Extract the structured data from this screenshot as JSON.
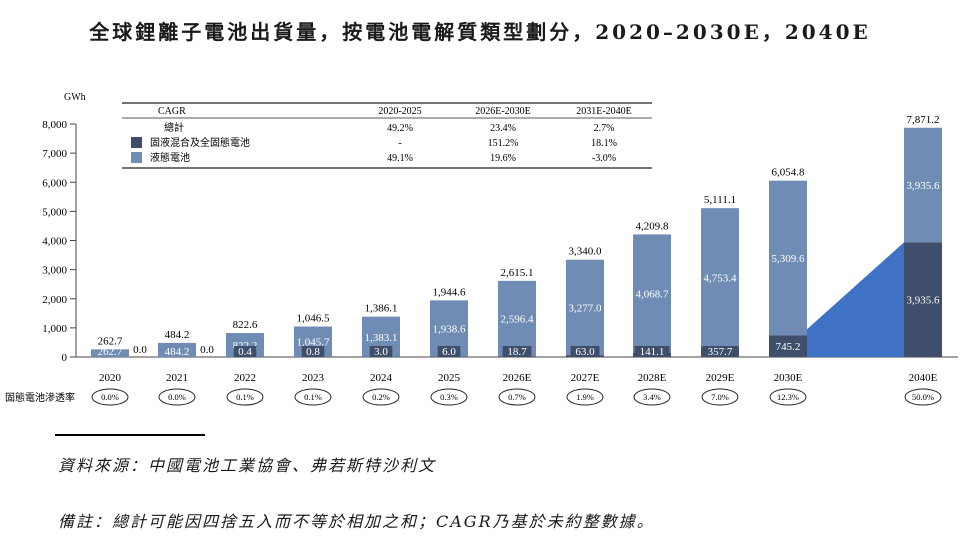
{
  "title": "全球鋰離子電池出貨量，按電池電解質類型劃分，2020–2030E，2040E",
  "source": "資料來源：中國電池工業協會、弗若斯特沙利文",
  "note": "備註：總計可能因四捨五入而不等於相加之和；CAGR乃基於未約整數據。",
  "colors": {
    "solid": "#3f4e6b",
    "liquid": "#6f8cb5",
    "wedge": "#3f72c4"
  },
  "chart_data": {
    "type": "bar",
    "stacked": true,
    "ylabel": "GWh",
    "ylim": [
      0,
      8000
    ],
    "yticks": [
      0,
      1000,
      2000,
      3000,
      4000,
      5000,
      6000,
      7000,
      8000
    ],
    "ytick_labels": [
      "0",
      "1,000",
      "2,000",
      "3,000",
      "4,000",
      "5,000",
      "6,000",
      "7,000",
      "8,000"
    ],
    "categories": [
      "2020",
      "2021",
      "2022",
      "2023",
      "2024",
      "2025",
      "2026E",
      "2027E",
      "2028E",
      "2029E",
      "2030E",
      "2040E"
    ],
    "series": [
      {
        "name": "固液混合及全固態電池",
        "values": [
          0,
          0,
          0.4,
          0.8,
          3.0,
          6.0,
          18.7,
          63.0,
          141.1,
          357.7,
          745.2,
          3935.6
        ],
        "labels": [
          "0.0",
          "0.0",
          "0.4",
          "0.8",
          "3.0",
          "6.0",
          "18.7",
          "63.0",
          "141.1",
          "357.7",
          "745.2",
          "3,935.6"
        ]
      },
      {
        "name": "液態電池",
        "values": [
          262.7,
          484.2,
          822.2,
          1045.7,
          1383.1,
          1938.6,
          2596.4,
          3277.0,
          4068.7,
          4753.4,
          5309.6,
          3935.6
        ],
        "labels": [
          "262.7",
          "484.2",
          "822.2",
          "1,045.7",
          "1,383.1",
          "1,938.6",
          "2,596.4",
          "3,277.0",
          "4,068.7",
          "4,753.4",
          "5,309.6",
          "3,935.6"
        ]
      }
    ],
    "totals": [
      262.7,
      484.2,
      822.6,
      1046.5,
      1386.1,
      1944.6,
      2615.1,
      3340.0,
      4209.8,
      5111.1,
      6054.8,
      7871.2
    ],
    "total_labels": [
      "262.7",
      "484.2",
      "822.6",
      "1,046.5",
      "1,386.1",
      "1,944.6",
      "2,615.1",
      "3,340.0",
      "4,209.8",
      "5,111.1",
      "6,054.8",
      "7,871.2"
    ],
    "penetration_label": "固態電池滲透率",
    "penetration": [
      "0.0%",
      "0.0%",
      "0.1%",
      "0.1%",
      "0.2%",
      "0.3%",
      "0.7%",
      "1.9%",
      "3.4%",
      "7.0%",
      "12.3%",
      "50.0%"
    ],
    "cagr_table": {
      "header": [
        "CAGR",
        "2020-2025",
        "2026E-2030E",
        "2031E-2040E"
      ],
      "rows": [
        {
          "label": "總計",
          "key": "",
          "values": [
            "49.2%",
            "23.4%",
            "2.7%"
          ]
        },
        {
          "label": "固液混合及全固態電池",
          "key": "solid",
          "values": [
            "-",
            "151.2%",
            "18.1%"
          ]
        },
        {
          "label": "液態電池",
          "key": "liquid",
          "values": [
            "49.1%",
            "19.6%",
            "-3.0%"
          ]
        }
      ]
    }
  }
}
